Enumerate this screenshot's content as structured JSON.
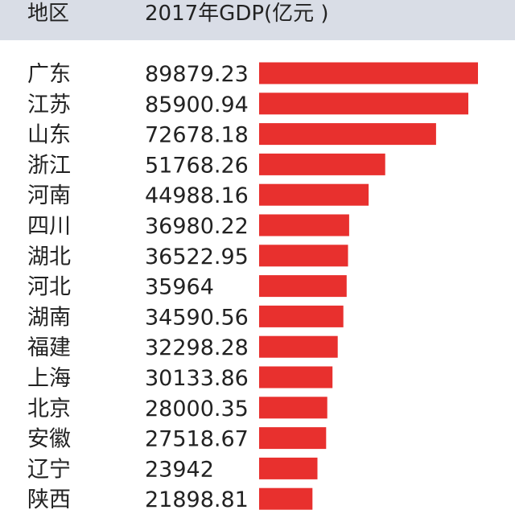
{
  "header": {
    "region_label": "地区",
    "value_label": "2017年GDP(亿元 )"
  },
  "colors": {
    "bar": "#e8302e",
    "header_bg": "#d9dde6",
    "text": "#222222"
  },
  "chart_data": {
    "type": "bar",
    "orientation": "horizontal",
    "title": "",
    "categories": [
      "广东",
      "江苏",
      "山东",
      "浙江",
      "河南",
      "四川",
      "湖北",
      "河北",
      "湖南",
      "福建",
      "上海",
      "北京",
      "安徽",
      "辽宁",
      "陕西"
    ],
    "value_labels": [
      "89879.23",
      "85900.94",
      "72678.18",
      "51768.26",
      "44988.16",
      "36980.22",
      "36522.95",
      "35964",
      "34590.56",
      "32298.28",
      "30133.86",
      "28000.35",
      "27518.67",
      "23942",
      "21898.81"
    ],
    "values": [
      89879.23,
      85900.94,
      72678.18,
      51768.26,
      44988.16,
      36980.22,
      36522.95,
      35964,
      34590.56,
      32298.28,
      30133.86,
      28000.35,
      27518.67,
      23942,
      21898.81
    ],
    "xlim": [
      0,
      89879.23
    ]
  }
}
